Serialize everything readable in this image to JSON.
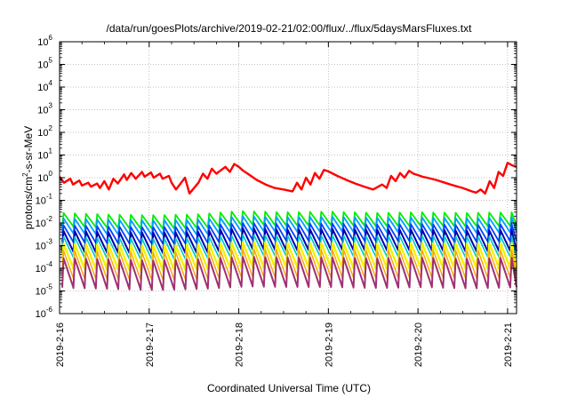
{
  "chart_data": {
    "type": "line",
    "title": "/data/run/goesPlots/archive/2019-02-21/02:00/flux/../flux/5daysMarsFluxes.txt",
    "xlabel": "Coordinated Universal Time (UTC)",
    "ylabel": "protons/cm²-s-sr-MeV",
    "y_scale": "log",
    "ylim_exponent": [
      -6,
      6
    ],
    "x_ticks": [
      "2019-2-16",
      "2019-2-17",
      "2019-2-18",
      "2019-2-19",
      "2019-2-20",
      "2019-2-21"
    ],
    "x_range_days": [
      0,
      5.1
    ],
    "grid": true,
    "series": [
      {
        "color": "#ff0000",
        "x": [
          0.0,
          0.05,
          0.12,
          0.15,
          0.22,
          0.25,
          0.32,
          0.35,
          0.42,
          0.45,
          0.5,
          0.55,
          0.6,
          0.65,
          0.72,
          0.75,
          0.8,
          0.85,
          0.92,
          0.95,
          1.02,
          1.05,
          1.12,
          1.15,
          1.22,
          1.25,
          1.3,
          1.4,
          1.45,
          1.55,
          1.6,
          1.65,
          1.7,
          1.75,
          1.85,
          1.9,
          1.95,
          2.0,
          2.05,
          2.1,
          2.2,
          2.3,
          2.4,
          2.5,
          2.6,
          2.65,
          2.7,
          2.75,
          2.8,
          2.85,
          2.9,
          2.95,
          3.0,
          3.05,
          3.1,
          3.2,
          3.3,
          3.4,
          3.5,
          3.6,
          3.65,
          3.7,
          3.75,
          3.8,
          3.85,
          3.9,
          3.95,
          4.0,
          4.05,
          4.1,
          4.2,
          4.3,
          4.4,
          4.5,
          4.6,
          4.65,
          4.7,
          4.75,
          4.8,
          4.85,
          4.9,
          4.95,
          5.0,
          5.05,
          5.1
        ],
        "y": [
          1.1,
          0.6,
          0.9,
          0.5,
          0.75,
          0.45,
          0.6,
          0.4,
          0.55,
          0.35,
          0.7,
          0.3,
          0.9,
          0.55,
          1.4,
          0.8,
          1.6,
          0.9,
          1.8,
          1.1,
          1.7,
          1.0,
          1.5,
          0.9,
          1.2,
          0.6,
          0.3,
          1.0,
          0.2,
          0.6,
          1.5,
          0.9,
          2.5,
          1.5,
          3.0,
          1.8,
          4.0,
          3.0,
          2.0,
          1.5,
          0.8,
          0.5,
          0.35,
          0.3,
          0.25,
          0.6,
          0.3,
          1.0,
          0.5,
          1.6,
          0.9,
          2.2,
          1.9,
          1.5,
          1.2,
          0.8,
          0.55,
          0.4,
          0.3,
          0.5,
          0.35,
          1.2,
          0.7,
          1.6,
          1.0,
          2.0,
          1.5,
          1.3,
          1.1,
          1.0,
          0.8,
          0.6,
          0.45,
          0.35,
          0.25,
          0.22,
          0.3,
          0.2,
          0.7,
          0.35,
          1.8,
          1.2,
          4.5,
          3.5,
          3.0
        ],
        "width": 2.4
      },
      {
        "color": "#00ee00",
        "period": 0.125,
        "phase": 0.03,
        "base": 0.016,
        "peak": 0.032,
        "trough": 0.008,
        "trend": [
          [
            0,
            0.028
          ],
          [
            0.5,
            0.024
          ],
          [
            1.0,
            0.022
          ],
          [
            1.5,
            0.024
          ],
          [
            2.0,
            0.034
          ],
          [
            2.5,
            0.03
          ],
          [
            3.0,
            0.032
          ],
          [
            3.5,
            0.028
          ],
          [
            4.0,
            0.03
          ],
          [
            4.5,
            0.028
          ],
          [
            5.1,
            0.03
          ]
        ],
        "width": 1.8
      },
      {
        "color": "#00a0ff",
        "period": 0.125,
        "phase": 0.03,
        "trend": [
          [
            0,
            0.016
          ],
          [
            0.5,
            0.014
          ],
          [
            1.0,
            0.013
          ],
          [
            1.5,
            0.014
          ],
          [
            2.0,
            0.02
          ],
          [
            2.5,
            0.018
          ],
          [
            3.0,
            0.019
          ],
          [
            3.5,
            0.017
          ],
          [
            4.0,
            0.018
          ],
          [
            4.5,
            0.016
          ],
          [
            5.1,
            0.018
          ]
        ],
        "drop": 0.22,
        "width": 1.8
      },
      {
        "color": "#0040ff",
        "period": 0.125,
        "phase": 0.03,
        "trend": [
          [
            0,
            0.008
          ],
          [
            0.5,
            0.007
          ],
          [
            1.0,
            0.0065
          ],
          [
            1.5,
            0.007
          ],
          [
            2.0,
            0.01
          ],
          [
            2.5,
            0.009
          ],
          [
            3.0,
            0.0095
          ],
          [
            3.5,
            0.0085
          ],
          [
            4.0,
            0.009
          ],
          [
            4.5,
            0.008
          ],
          [
            5.1,
            0.009
          ]
        ],
        "drop": 0.18,
        "width": 1.8
      },
      {
        "color": "#0000b0",
        "period": 0.125,
        "phase": 0.03,
        "trend": [
          [
            0,
            0.0045
          ],
          [
            0.5,
            0.004
          ],
          [
            1.0,
            0.0038
          ],
          [
            1.5,
            0.004
          ],
          [
            2.0,
            0.006
          ],
          [
            2.5,
            0.005
          ],
          [
            3.0,
            0.0055
          ],
          [
            3.5,
            0.005
          ],
          [
            4.0,
            0.0052
          ],
          [
            4.5,
            0.0045
          ],
          [
            5.1,
            0.005
          ]
        ],
        "drop": 0.12,
        "width": 2.0
      },
      {
        "color": "#00c8c8",
        "period": 0.125,
        "phase": 0.03,
        "trend": [
          [
            0,
            0.0025
          ],
          [
            0.5,
            0.0022
          ],
          [
            1.0,
            0.002
          ],
          [
            1.5,
            0.0022
          ],
          [
            2.0,
            0.003
          ],
          [
            2.5,
            0.0028
          ],
          [
            3.0,
            0.0029
          ],
          [
            3.5,
            0.0026
          ],
          [
            4.0,
            0.0028
          ],
          [
            4.5,
            0.0025
          ],
          [
            5.1,
            0.0027
          ]
        ],
        "drop": 0.12,
        "width": 1.6
      },
      {
        "color": "#f2f200",
        "period": 0.125,
        "phase": 0.03,
        "trend": [
          [
            0,
            0.0012
          ],
          [
            0.5,
            0.0011
          ],
          [
            1.0,
            0.001
          ],
          [
            1.5,
            0.0011
          ],
          [
            2.0,
            0.0014
          ],
          [
            2.5,
            0.0013
          ],
          [
            3.0,
            0.0013
          ],
          [
            3.5,
            0.0012
          ],
          [
            4.0,
            0.0013
          ],
          [
            4.5,
            0.0012
          ],
          [
            5.1,
            0.0013
          ]
        ],
        "drop": 0.08,
        "width": 2.4
      },
      {
        "color": "#ffa000",
        "period": 0.125,
        "phase": 0.03,
        "trend": [
          [
            0,
            0.0006
          ],
          [
            0.5,
            0.00055
          ],
          [
            1.0,
            0.0005
          ],
          [
            1.5,
            0.00055
          ],
          [
            2.0,
            0.0007
          ],
          [
            2.5,
            0.00065
          ],
          [
            3.0,
            0.00065
          ],
          [
            3.5,
            0.0006
          ],
          [
            4.0,
            0.00065
          ],
          [
            4.5,
            0.0006
          ],
          [
            5.1,
            0.00065
          ]
        ],
        "drop": 0.06,
        "width": 1.4
      },
      {
        "color": "#a03070",
        "period": 0.125,
        "phase": 0.03,
        "trend": [
          [
            0,
            0.00028
          ],
          [
            0.5,
            0.00025
          ],
          [
            1.0,
            0.00022
          ],
          [
            1.5,
            0.00025
          ],
          [
            2.0,
            0.00032
          ],
          [
            2.5,
            0.0003
          ],
          [
            3.0,
            0.0003
          ],
          [
            3.5,
            0.00027
          ],
          [
            4.0,
            0.0003
          ],
          [
            4.5,
            0.00026
          ],
          [
            5.1,
            0.0003
          ]
        ],
        "drop": 0.05,
        "width": 2.0
      }
    ]
  }
}
